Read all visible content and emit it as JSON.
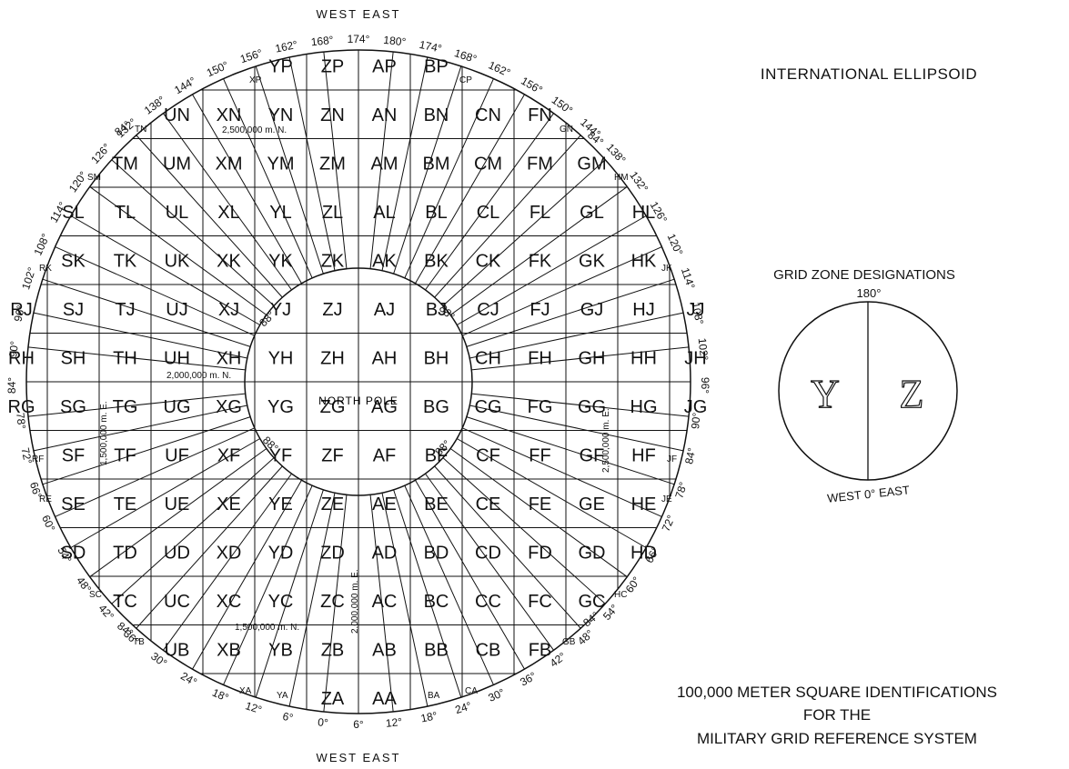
{
  "map": {
    "title": "INTERNATIONAL ELLIPSOID",
    "caption": [
      "100,000 METER SQUARE IDENTIFICATIONS",
      "FOR THE",
      "MILITARY GRID REFERENCE SYSTEM"
    ],
    "top_label": "WEST EAST",
    "bottom_label": "WEST EAST",
    "north_pole_label": "NORTH POLE",
    "grid_rows": [
      [
        "",
        "",
        "",
        "",
        "",
        "YP",
        "ZP",
        "AP",
        "BP",
        "",
        "",
        "",
        ""
      ],
      [
        "",
        "UN",
        "XN",
        "YN",
        "ZN",
        "AN",
        "BN",
        "CN",
        "FN",
        "",
        "",
        "",
        ""
      ],
      [
        "TM",
        "UM",
        "XM",
        "YM",
        "ZM",
        "AM",
        "BM",
        "CM",
        "FM",
        "GM",
        "",
        "",
        ""
      ],
      [
        "SL",
        "TL",
        "UL",
        "XL",
        "YL",
        "ZL",
        "AL",
        "BL",
        "CL",
        "FL",
        "GL",
        "HL",
        ""
      ],
      [
        "SK",
        "TK",
        "UK",
        "XK",
        "YK",
        "ZK",
        "AK",
        "BK",
        "CK",
        "FK",
        "GK",
        "HK",
        ""
      ],
      [
        "RJ",
        "SJ",
        "TJ",
        "UJ",
        "XJ",
        "YJ",
        "ZJ",
        "AJ",
        "BJ",
        "CJ",
        "FJ",
        "GJ",
        "HJ",
        "JJ"
      ],
      [
        "RH",
        "SH",
        "TH",
        "UH",
        "XH",
        "YH",
        "ZH",
        "AH",
        "BH",
        "CH",
        "FH",
        "GH",
        "HH",
        "JH"
      ],
      [
        "RG",
        "SG",
        "TG",
        "UG",
        "XG",
        "YG",
        "ZG",
        "AG",
        "BG",
        "CG",
        "FG",
        "GG",
        "HG",
        "JG"
      ],
      [
        "SF",
        "TF",
        "UF",
        "XF",
        "YF",
        "ZF",
        "AF",
        "BF",
        "CF",
        "FF",
        "GF",
        "HF",
        "",
        ""
      ],
      [
        "SE",
        "TE",
        "UE",
        "XE",
        "YE",
        "ZE",
        "AE",
        "BE",
        "CE",
        "FE",
        "GE",
        "HE",
        "",
        ""
      ],
      [
        "SD",
        "TD",
        "UD",
        "XD",
        "YD",
        "ZD",
        "AD",
        "BD",
        "CD",
        "FD",
        "GD",
        "HD",
        "",
        ""
      ],
      [
        "TC",
        "UC",
        "XC",
        "YC",
        "ZC",
        "AC",
        "BC",
        "CC",
        "FC",
        "GC",
        "",
        "",
        "",
        ""
      ],
      [
        "UB",
        "XB",
        "YB",
        "ZB",
        "AB",
        "BB",
        "CB",
        "FB",
        "",
        "",
        "",
        "",
        ""
      ],
      [
        "ZA",
        "AA",
        "",
        "",
        "",
        "",
        "",
        "",
        "",
        "",
        "",
        "",
        ""
      ]
    ],
    "cells": [
      {
        "t": "YP",
        "c": 5,
        "r": 0
      },
      {
        "t": "ZP",
        "c": 6,
        "r": 0
      },
      {
        "t": "AP",
        "c": 7,
        "r": 0
      },
      {
        "t": "BP",
        "c": 8,
        "r": 0
      },
      {
        "t": "UN",
        "c": 3,
        "r": 1
      },
      {
        "t": "XN",
        "c": 4,
        "r": 1
      },
      {
        "t": "YN",
        "c": 5,
        "r": 1
      },
      {
        "t": "ZN",
        "c": 6,
        "r": 1
      },
      {
        "t": "AN",
        "c": 7,
        "r": 1
      },
      {
        "t": "BN",
        "c": 8,
        "r": 1
      },
      {
        "t": "CN",
        "c": 9,
        "r": 1
      },
      {
        "t": "FN",
        "c": 10,
        "r": 1
      },
      {
        "t": "TM",
        "c": 2,
        "r": 2
      },
      {
        "t": "UM",
        "c": 3,
        "r": 2
      },
      {
        "t": "XM",
        "c": 4,
        "r": 2
      },
      {
        "t": "YM",
        "c": 5,
        "r": 2
      },
      {
        "t": "ZM",
        "c": 6,
        "r": 2
      },
      {
        "t": "AM",
        "c": 7,
        "r": 2
      },
      {
        "t": "BM",
        "c": 8,
        "r": 2
      },
      {
        "t": "CM",
        "c": 9,
        "r": 2
      },
      {
        "t": "FM",
        "c": 10,
        "r": 2
      },
      {
        "t": "GM",
        "c": 11,
        "r": 2
      },
      {
        "t": "SL",
        "c": 1,
        "r": 3
      },
      {
        "t": "TL",
        "c": 2,
        "r": 3
      },
      {
        "t": "UL",
        "c": 3,
        "r": 3
      },
      {
        "t": "XL",
        "c": 4,
        "r": 3
      },
      {
        "t": "YL",
        "c": 5,
        "r": 3
      },
      {
        "t": "ZL",
        "c": 6,
        "r": 3
      },
      {
        "t": "AL",
        "c": 7,
        "r": 3
      },
      {
        "t": "BL",
        "c": 8,
        "r": 3
      },
      {
        "t": "CL",
        "c": 9,
        "r": 3
      },
      {
        "t": "FL",
        "c": 10,
        "r": 3
      },
      {
        "t": "GL",
        "c": 11,
        "r": 3
      },
      {
        "t": "HL",
        "c": 12,
        "r": 3
      },
      {
        "t": "SK",
        "c": 1,
        "r": 4
      },
      {
        "t": "TK",
        "c": 2,
        "r": 4
      },
      {
        "t": "UK",
        "c": 3,
        "r": 4
      },
      {
        "t": "XK",
        "c": 4,
        "r": 4
      },
      {
        "t": "YK",
        "c": 5,
        "r": 4
      },
      {
        "t": "ZK",
        "c": 6,
        "r": 4
      },
      {
        "t": "AK",
        "c": 7,
        "r": 4
      },
      {
        "t": "BK",
        "c": 8,
        "r": 4
      },
      {
        "t": "CK",
        "c": 9,
        "r": 4
      },
      {
        "t": "FK",
        "c": 10,
        "r": 4
      },
      {
        "t": "GK",
        "c": 11,
        "r": 4
      },
      {
        "t": "HK",
        "c": 12,
        "r": 4
      },
      {
        "t": "RJ",
        "c": 0,
        "r": 5
      },
      {
        "t": "SJ",
        "c": 1,
        "r": 5
      },
      {
        "t": "TJ",
        "c": 2,
        "r": 5
      },
      {
        "t": "UJ",
        "c": 3,
        "r": 5
      },
      {
        "t": "XJ",
        "c": 4,
        "r": 5
      },
      {
        "t": "YJ",
        "c": 5,
        "r": 5
      },
      {
        "t": "ZJ",
        "c": 6,
        "r": 5
      },
      {
        "t": "AJ",
        "c": 7,
        "r": 5
      },
      {
        "t": "BJ",
        "c": 8,
        "r": 5
      },
      {
        "t": "CJ",
        "c": 9,
        "r": 5
      },
      {
        "t": "FJ",
        "c": 10,
        "r": 5
      },
      {
        "t": "GJ",
        "c": 11,
        "r": 5
      },
      {
        "t": "HJ",
        "c": 12,
        "r": 5
      },
      {
        "t": "JJ",
        "c": 13,
        "r": 5
      },
      {
        "t": "RH",
        "c": 0,
        "r": 6
      },
      {
        "t": "SH",
        "c": 1,
        "r": 6
      },
      {
        "t": "TH",
        "c": 2,
        "r": 6
      },
      {
        "t": "UH",
        "c": 3,
        "r": 6
      },
      {
        "t": "XH",
        "c": 4,
        "r": 6
      },
      {
        "t": "YH",
        "c": 5,
        "r": 6
      },
      {
        "t": "ZH",
        "c": 6,
        "r": 6
      },
      {
        "t": "AH",
        "c": 7,
        "r": 6
      },
      {
        "t": "BH",
        "c": 8,
        "r": 6
      },
      {
        "t": "CH",
        "c": 9,
        "r": 6
      },
      {
        "t": "FH",
        "c": 10,
        "r": 6
      },
      {
        "t": "GH",
        "c": 11,
        "r": 6
      },
      {
        "t": "HH",
        "c": 12,
        "r": 6
      },
      {
        "t": "JH",
        "c": 13,
        "r": 6
      },
      {
        "t": "RG",
        "c": 0,
        "r": 7
      },
      {
        "t": "SG",
        "c": 1,
        "r": 7
      },
      {
        "t": "TG",
        "c": 2,
        "r": 7
      },
      {
        "t": "UG",
        "c": 3,
        "r": 7
      },
      {
        "t": "XG",
        "c": 4,
        "r": 7
      },
      {
        "t": "YG",
        "c": 5,
        "r": 7
      },
      {
        "t": "ZG",
        "c": 6,
        "r": 7
      },
      {
        "t": "AG",
        "c": 7,
        "r": 7
      },
      {
        "t": "BG",
        "c": 8,
        "r": 7
      },
      {
        "t": "CG",
        "c": 9,
        "r": 7
      },
      {
        "t": "FG",
        "c": 10,
        "r": 7
      },
      {
        "t": "GG",
        "c": 11,
        "r": 7
      },
      {
        "t": "HG",
        "c": 12,
        "r": 7
      },
      {
        "t": "JG",
        "c": 13,
        "r": 7
      },
      {
        "t": "SF",
        "c": 1,
        "r": 8
      },
      {
        "t": "TF",
        "c": 2,
        "r": 8
      },
      {
        "t": "UF",
        "c": 3,
        "r": 8
      },
      {
        "t": "XF",
        "c": 4,
        "r": 8
      },
      {
        "t": "YF",
        "c": 5,
        "r": 8
      },
      {
        "t": "ZF",
        "c": 6,
        "r": 8
      },
      {
        "t": "AF",
        "c": 7,
        "r": 8
      },
      {
        "t": "BF",
        "c": 8,
        "r": 8
      },
      {
        "t": "CF",
        "c": 9,
        "r": 8
      },
      {
        "t": "FF",
        "c": 10,
        "r": 8
      },
      {
        "t": "GF",
        "c": 11,
        "r": 8
      },
      {
        "t": "HF",
        "c": 12,
        "r": 8
      },
      {
        "t": "SE",
        "c": 1,
        "r": 9
      },
      {
        "t": "TE",
        "c": 2,
        "r": 9
      },
      {
        "t": "UE",
        "c": 3,
        "r": 9
      },
      {
        "t": "XE",
        "c": 4,
        "r": 9
      },
      {
        "t": "YE",
        "c": 5,
        "r": 9
      },
      {
        "t": "ZE",
        "c": 6,
        "r": 9
      },
      {
        "t": "AE",
        "c": 7,
        "r": 9
      },
      {
        "t": "BE",
        "c": 8,
        "r": 9
      },
      {
        "t": "CE",
        "c": 9,
        "r": 9
      },
      {
        "t": "FE",
        "c": 10,
        "r": 9
      },
      {
        "t": "GE",
        "c": 11,
        "r": 9
      },
      {
        "t": "HE",
        "c": 12,
        "r": 9
      },
      {
        "t": "SD",
        "c": 1,
        "r": 10
      },
      {
        "t": "TD",
        "c": 2,
        "r": 10
      },
      {
        "t": "UD",
        "c": 3,
        "r": 10
      },
      {
        "t": "XD",
        "c": 4,
        "r": 10
      },
      {
        "t": "YD",
        "c": 5,
        "r": 10
      },
      {
        "t": "ZD",
        "c": 6,
        "r": 10
      },
      {
        "t": "AD",
        "c": 7,
        "r": 10
      },
      {
        "t": "BD",
        "c": 8,
        "r": 10
      },
      {
        "t": "CD",
        "c": 9,
        "r": 10
      },
      {
        "t": "FD",
        "c": 10,
        "r": 10
      },
      {
        "t": "GD",
        "c": 11,
        "r": 10
      },
      {
        "t": "HD",
        "c": 12,
        "r": 10
      },
      {
        "t": "TC",
        "c": 2,
        "r": 11
      },
      {
        "t": "UC",
        "c": 3,
        "r": 11
      },
      {
        "t": "XC",
        "c": 4,
        "r": 11
      },
      {
        "t": "YC",
        "c": 5,
        "r": 11
      },
      {
        "t": "ZC",
        "c": 6,
        "r": 11
      },
      {
        "t": "AC",
        "c": 7,
        "r": 11
      },
      {
        "t": "BC",
        "c": 8,
        "r": 11
      },
      {
        "t": "CC",
        "c": 9,
        "r": 11
      },
      {
        "t": "FC",
        "c": 10,
        "r": 11
      },
      {
        "t": "GC",
        "c": 11,
        "r": 11
      },
      {
        "t": "UB",
        "c": 3,
        "r": 12
      },
      {
        "t": "XB",
        "c": 4,
        "r": 12
      },
      {
        "t": "YB",
        "c": 5,
        "r": 12
      },
      {
        "t": "ZB",
        "c": 6,
        "r": 12
      },
      {
        "t": "AB",
        "c": 7,
        "r": 12
      },
      {
        "t": "BB",
        "c": 8,
        "r": 12
      },
      {
        "t": "CB",
        "c": 9,
        "r": 12
      },
      {
        "t": "FB",
        "c": 10,
        "r": 12
      },
      {
        "t": "ZA",
        "c": 6,
        "r": 13
      },
      {
        "t": "AA",
        "c": 7,
        "r": 13
      }
    ],
    "small_cells": [
      "XP",
      "CP",
      "TN",
      "GN",
      "SM",
      "HM",
      "RK",
      "JK",
      "RF",
      "JF",
      "RE",
      "JE",
      "SC",
      "HC",
      "TB",
      "GB",
      "XA",
      "YA",
      "BA",
      "CA"
    ],
    "meter_labels": [
      "2,500,000 m. N.",
      "2,000,000 m. N.",
      "1,500,000 m. N.",
      "1,500,000 m. E.",
      "2,500,000 m. E.",
      "2,000,000 m. E."
    ],
    "latitude_labels": [
      "84°",
      "84°",
      "84°",
      "84°",
      "88°",
      "88°",
      "88°",
      "88°"
    ],
    "longitude_top": [
      "174°",
      "180°",
      "174°",
      "168°",
      "162°",
      "156°",
      "150°",
      "144°",
      "138°",
      "132°",
      "126°",
      "120°",
      "114°",
      "108°",
      "102°",
      "96°",
      "90°",
      "84°",
      "78°",
      "72°",
      "66°",
      "60°",
      "54°",
      "48°",
      "42°",
      "36°",
      "30°",
      "24°",
      "18°",
      "12°",
      "6°",
      "0°",
      "6°",
      "12°",
      "18°",
      "24°",
      "30°",
      "36°",
      "42°",
      "48°",
      "54°",
      "60°",
      "66°",
      "72°",
      "78°",
      "84°",
      "90°",
      "96°",
      "102°",
      "108°",
      "114°",
      "120°",
      "126°",
      "132°",
      "138°",
      "144°",
      "150°",
      "156°",
      "162°",
      "168°"
    ],
    "legend": {
      "title": "GRID ZONE DESIGNATIONS",
      "top": "180°",
      "left_zone": "Y",
      "right_zone": "Z",
      "bottom": "WEST 0° EAST"
    }
  }
}
